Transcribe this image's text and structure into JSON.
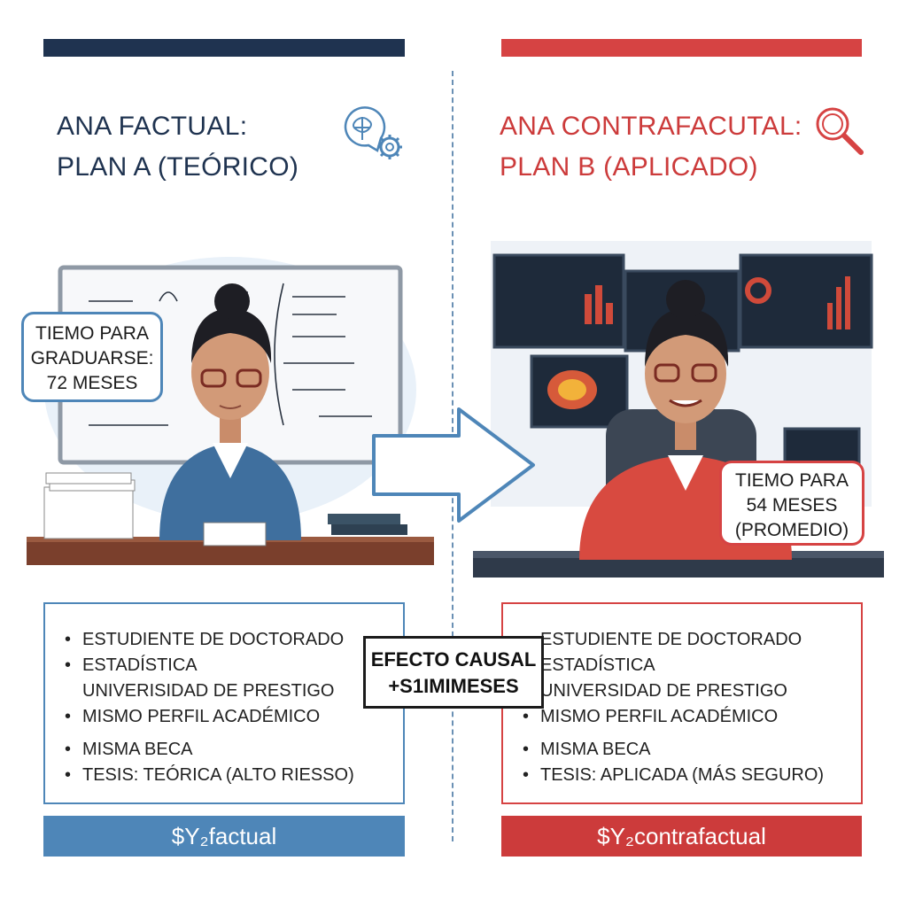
{
  "left": {
    "title_line1": "ANA FACTUAL:",
    "title_line2": "PLAN A (TEÓRICO)",
    "icon": "brain-gear-icon",
    "bubble_line1": "TIEMO PARA",
    "bubble_line2": "GRADUARSE:",
    "bubble_line3": "72 MESES",
    "bullets": [
      "ESTUDIENTE DE DOCTORADO",
      "ESTADÍSTICA",
      "UNIVERISIDAD DE PRESTIGO",
      "MISMO PERFIL ACADÉMICO",
      "MISMA BECA",
      "TESIS: TEÓRICA (ALTO RIESSO)"
    ],
    "footer": "$Y₂factual",
    "accent": "#1f3350",
    "footer_color": "#4e86b8"
  },
  "right": {
    "title_line1": "ANA CONTRAFACUTAL:",
    "title_line2": "PLAN B (APLICADO)",
    "icon": "magnifier-icon",
    "bubble_line1": "TIEMO PARA",
    "bubble_line2": "54 MESES",
    "bubble_line3": "(PROMEDIO)",
    "bullets": [
      "ESTUDIENTE DE DOCTORADO",
      "ESTADÍSTICA",
      "UNIVERSIDAD DE PRESTIGO",
      "MISMO PERFIL ACADÉMICO",
      "MISMA BECA",
      "TESIS: APLICADA (MÁS SEGURO)"
    ],
    "footer": "$Y₂contrafactual",
    "accent": "#cc3b3b",
    "footer_color": "#cc3b3b"
  },
  "center": {
    "causal_line1": "EFECTO CAUSAL",
    "causal_line2": "+S1IMIMESES",
    "arrow_icon": "right-arrow-icon"
  }
}
